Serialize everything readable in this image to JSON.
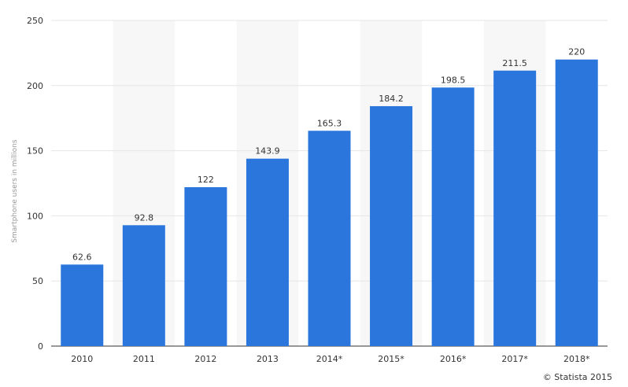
{
  "chart_data": {
    "type": "bar",
    "categories": [
      "2010",
      "2011",
      "2012",
      "2013",
      "2014*",
      "2015*",
      "2016*",
      "2017*",
      "2018*"
    ],
    "values": [
      62.6,
      92.8,
      122,
      143.9,
      165.3,
      184.2,
      198.5,
      211.5,
      220
    ],
    "data_labels": [
      "62.6",
      "92.8",
      "122",
      "143.9",
      "165.3",
      "184.2",
      "198.5",
      "211.5",
      "220"
    ],
    "title": "",
    "xlabel": "",
    "ylabel": "Smartphone users in millions",
    "ylim": [
      0,
      250
    ],
    "yticks": [
      0,
      50,
      100,
      150,
      200,
      250
    ],
    "grid": true,
    "alternating_column_shading": true,
    "bar_color": "#2a76dd",
    "band_color": "#f7f7f7",
    "grid_color": "#e6e6e6"
  },
  "credit": "© Statista 2015"
}
